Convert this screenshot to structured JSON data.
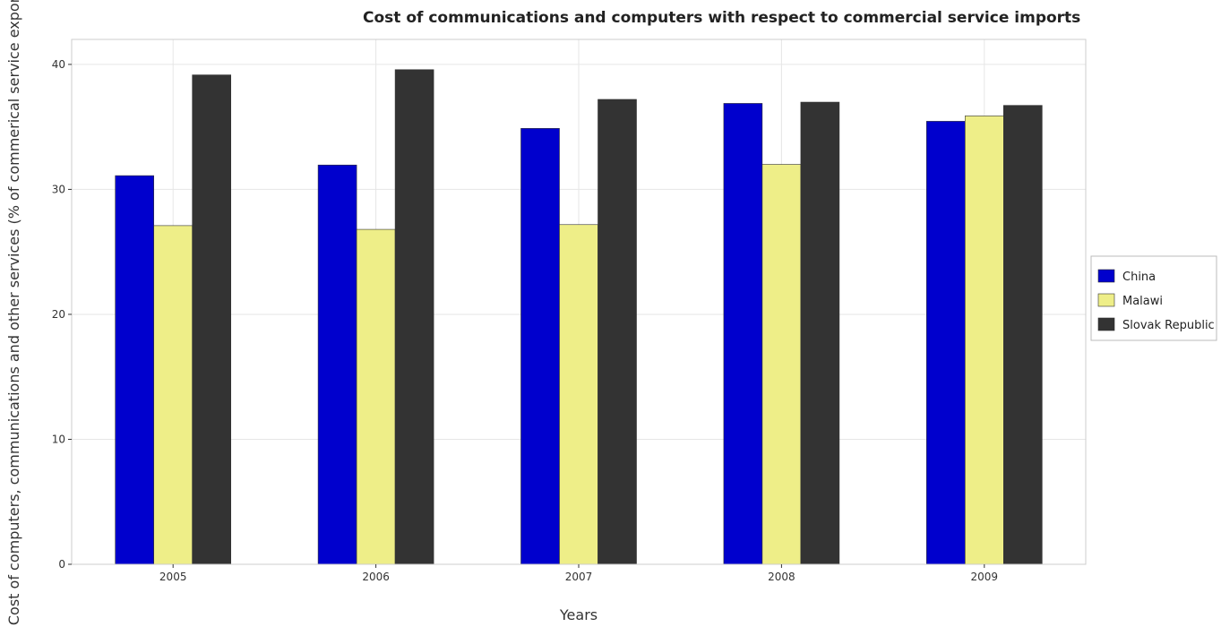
{
  "chart_data": {
    "type": "bar",
    "title": "Cost of communications and computers with respect to commercial service imports",
    "xlabel": "Years",
    "ylabel": "Cost of computers, communications and other services (% of commerical service exports)",
    "categories": [
      "2005",
      "2006",
      "2007",
      "2008",
      "2009"
    ],
    "ylim": [
      0,
      42
    ],
    "yticks": [
      0,
      10,
      20,
      30,
      40
    ],
    "ytick_labels": [
      "0",
      "10",
      "20",
      "30",
      "40"
    ],
    "grid": true,
    "legend_position": "right",
    "series": [
      {
        "name": "China",
        "color": "#0000cd",
        "values": [
          31.1,
          31.95,
          34.88,
          36.88,
          35.45
        ]
      },
      {
        "name": "Malawi",
        "color": "#eeee88",
        "values": [
          27.1,
          26.8,
          27.18,
          32.0,
          35.88
        ]
      },
      {
        "name": "Slovak Republic",
        "color": "#333333",
        "values": [
          39.16,
          39.58,
          37.2,
          36.98,
          36.72
        ]
      }
    ]
  }
}
